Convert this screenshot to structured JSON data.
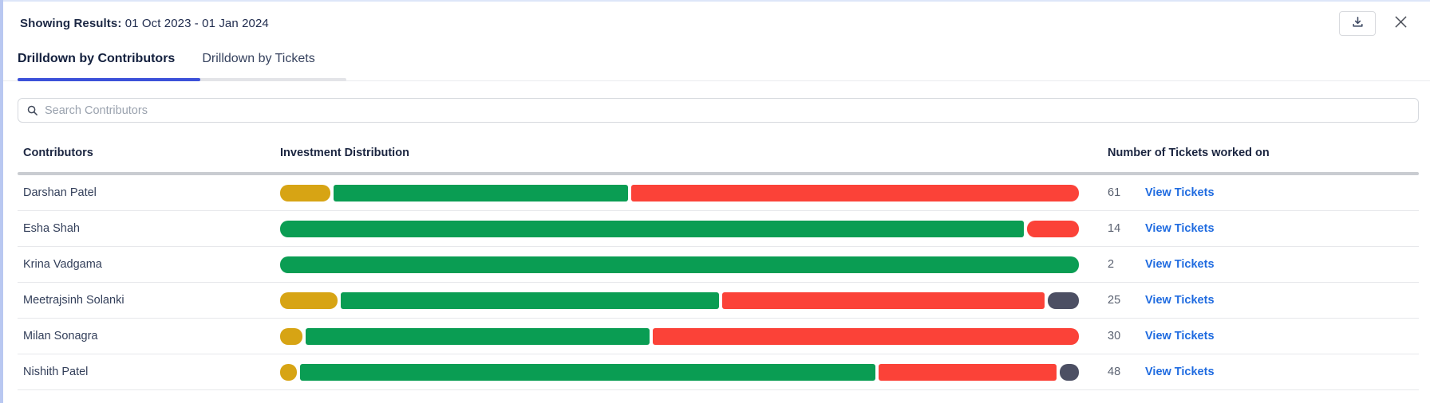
{
  "header": {
    "results_label": "Showing Results:",
    "results_value": "01 Oct 2023 - 01 Jan 2024"
  },
  "icons": {
    "download": "download-icon",
    "close": "close-icon",
    "search": "search-icon"
  },
  "tabs": [
    {
      "label": "Drilldown by Contributors",
      "active": true
    },
    {
      "label": "Drilldown by Tickets",
      "active": false
    }
  ],
  "search": {
    "placeholder": "Search Contributors"
  },
  "table": {
    "columns": [
      "Contributors",
      "Investment Distribution",
      "Number of Tickets worked on"
    ],
    "link_label": "View Tickets",
    "rows": [
      {
        "name": "Darshan Patel",
        "tickets": "61",
        "segments": [
          {
            "color": "yellow",
            "pct": 6.3
          },
          {
            "color": "green",
            "pct": 37.2
          },
          {
            "color": "red",
            "pct": 56.5
          }
        ]
      },
      {
        "name": "Esha Shah",
        "tickets": "14",
        "segments": [
          {
            "color": "green",
            "pct": 93.5
          },
          {
            "color": "red",
            "pct": 6.5
          }
        ]
      },
      {
        "name": "Krina Vadgama",
        "tickets": "2",
        "segments": [
          {
            "color": "green",
            "pct": 100
          }
        ]
      },
      {
        "name": "Meetrajsinh Solanki",
        "tickets": "25",
        "segments": [
          {
            "color": "yellow",
            "pct": 7.3
          },
          {
            "color": "green",
            "pct": 47.9
          },
          {
            "color": "red",
            "pct": 40.9
          },
          {
            "color": "dark",
            "pct": 3.9
          }
        ]
      },
      {
        "name": "Milan Sonagra",
        "tickets": "30",
        "segments": [
          {
            "color": "yellow",
            "pct": 2.8
          },
          {
            "color": "green",
            "pct": 43.4
          },
          {
            "color": "red",
            "pct": 53.8
          }
        ]
      },
      {
        "name": "Nishith Patel",
        "tickets": "48",
        "segments": [
          {
            "color": "yellow",
            "pct": 2.1
          },
          {
            "color": "green",
            "pct": 72.9
          },
          {
            "color": "red",
            "pct": 22.6
          },
          {
            "color": "dark",
            "pct": 2.4
          }
        ]
      }
    ]
  },
  "colors": {
    "yellow": "#D7A414",
    "green": "#0A9D53",
    "red": "#FB4238",
    "dark": "#4C4F63",
    "link": "#1F6BE0",
    "tab_active": "#3C51D9"
  }
}
